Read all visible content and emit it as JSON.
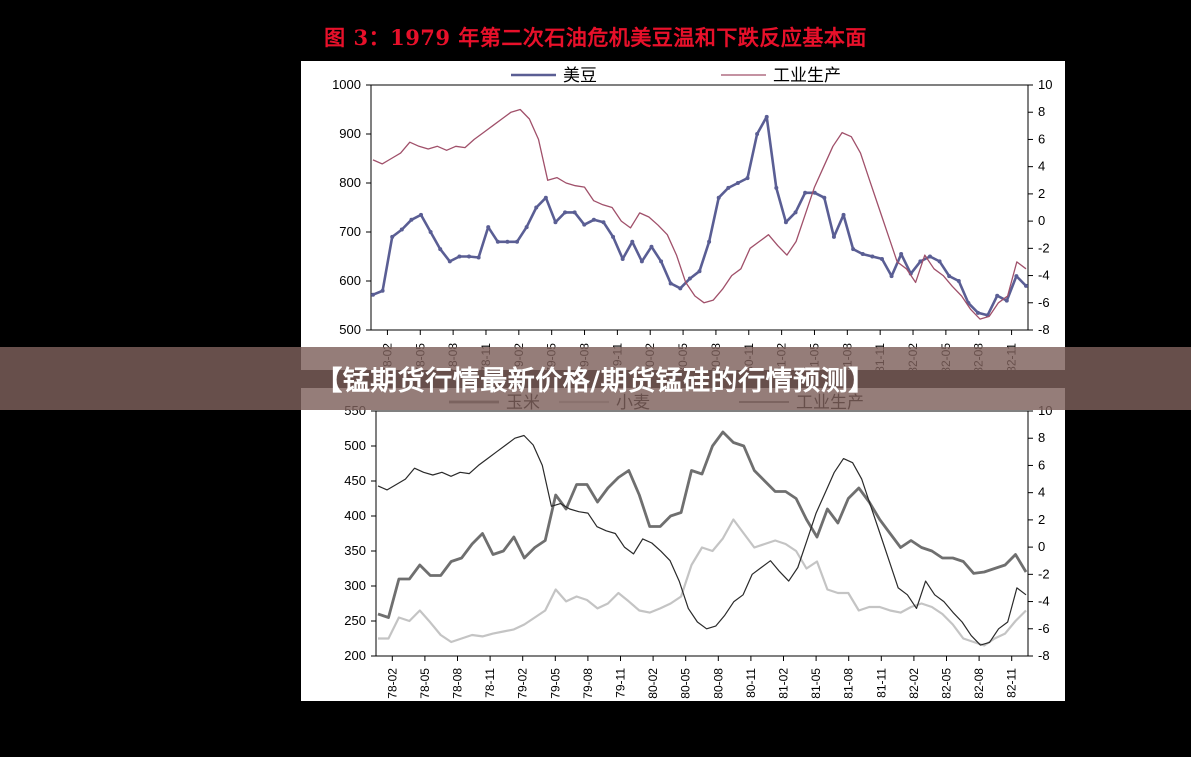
{
  "figure_title": "图 3：1979 年第二次石油危机美豆温和下跌反应基本面",
  "banner": "【锰期货行情最新价格/期货锰硅的行情预测】",
  "colors": {
    "soybean": "#5a5e94",
    "industry_top": "#a0506a",
    "corn": "#6f6f6f",
    "wheat": "#c4c4c4",
    "industry_bottom": "#2a2a2a",
    "title": "#e8102a",
    "banner_bg": "#7e605c"
  },
  "chart_data": [
    {
      "type": "line",
      "legend": [
        "美豆",
        "工业生产"
      ],
      "legend_placement": "top",
      "grid": false,
      "ylim_left": [
        500,
        1000
      ],
      "yticks_left": [
        1000,
        900,
        800,
        700,
        600,
        500
      ],
      "ylim_right": [
        -8,
        10
      ],
      "yticks_right": [
        10,
        8,
        6,
        4,
        2,
        0,
        -2,
        -4,
        -6,
        -8
      ],
      "xticks": [
        "78-02",
        "78-05",
        "78-08",
        "78-11",
        "79-02",
        "79-05",
        "79-08",
        "79-11",
        "80-02",
        "80-05",
        "80-08",
        "80-11",
        "81-02",
        "81-05",
        "81-08",
        "81-11",
        "82-02",
        "82-05",
        "82-08",
        "82-11"
      ],
      "series": [
        {
          "name": "美豆",
          "axis": "left",
          "markers": true,
          "values": [
            572,
            580,
            690,
            705,
            725,
            735,
            700,
            665,
            640,
            650,
            650,
            648,
            710,
            680,
            680,
            680,
            710,
            750,
            770,
            720,
            740,
            740,
            715,
            725,
            720,
            690,
            645,
            680,
            640,
            670,
            640,
            595,
            585,
            605,
            620,
            680,
            770,
            790,
            800,
            810,
            900,
            935,
            790,
            720,
            740,
            780,
            780,
            770,
            690,
            735,
            665,
            655,
            650,
            645,
            610,
            655,
            615,
            640,
            650,
            640,
            610,
            600,
            555,
            535,
            530,
            570,
            560,
            610,
            590
          ]
        },
        {
          "name": "工业生产",
          "axis": "right",
          "markers": false,
          "values": [
            4.5,
            4.2,
            4.6,
            5.0,
            5.8,
            5.5,
            5.3,
            5.5,
            5.2,
            5.5,
            5.4,
            6.0,
            6.5,
            7.0,
            7.5,
            8.0,
            8.2,
            7.5,
            6.0,
            3.0,
            3.2,
            2.8,
            2.6,
            2.5,
            1.5,
            1.2,
            1.0,
            0.0,
            -0.5,
            0.6,
            0.3,
            -0.3,
            -1.0,
            -2.5,
            -4.5,
            -5.5,
            -6.0,
            -5.8,
            -5.0,
            -4.0,
            -3.5,
            -2.0,
            -1.5,
            -1.0,
            -1.8,
            -2.5,
            -1.5,
            0.5,
            2.5,
            4.0,
            5.5,
            6.5,
            6.2,
            5.0,
            3.0,
            1.0,
            -1.0,
            -3.0,
            -3.5,
            -4.5,
            -2.5,
            -3.5,
            -4.0,
            -4.8,
            -5.5,
            -6.5,
            -7.2,
            -7.0,
            -6.0,
            -5.5,
            -3.0,
            -3.5
          ]
        }
      ]
    },
    {
      "type": "line",
      "legend": [
        "玉米",
        "小麦",
        "工业生产"
      ],
      "legend_placement": "top",
      "grid": false,
      "ylim_left": [
        200,
        550
      ],
      "yticks_left": [
        550,
        500,
        450,
        400,
        350,
        300,
        250,
        200
      ],
      "ylim_right": [
        -8,
        10
      ],
      "yticks_right": [
        10,
        8,
        6,
        4,
        2,
        0,
        -2,
        -4,
        -6,
        -8
      ],
      "xticks": [
        "78-02",
        "78-05",
        "78-08",
        "78-11",
        "79-02",
        "79-05",
        "79-08",
        "79-11",
        "80-02",
        "80-05",
        "80-08",
        "80-11",
        "81-02",
        "81-05",
        "81-08",
        "81-11",
        "82-02",
        "82-05",
        "82-08",
        "82-11"
      ],
      "series": [
        {
          "name": "玉米",
          "axis": "left",
          "values": [
            260,
            255,
            310,
            310,
            330,
            315,
            315,
            335,
            340,
            360,
            375,
            345,
            350,
            370,
            340,
            355,
            365,
            430,
            410,
            445,
            445,
            420,
            440,
            455,
            465,
            430,
            385,
            385,
            400,
            405,
            465,
            460,
            500,
            520,
            505,
            500,
            465,
            450,
            435,
            435,
            425,
            395,
            370,
            410,
            390,
            425,
            440,
            420,
            395,
            375,
            355,
            365,
            355,
            350,
            340,
            340,
            335,
            318,
            320,
            325,
            330,
            345,
            320
          ]
        },
        {
          "name": "小麦",
          "axis": "left",
          "values": [
            225,
            225,
            255,
            250,
            265,
            248,
            230,
            220,
            225,
            230,
            228,
            232,
            235,
            238,
            245,
            255,
            265,
            295,
            278,
            285,
            280,
            268,
            275,
            290,
            278,
            265,
            262,
            268,
            275,
            285,
            330,
            355,
            350,
            368,
            395,
            375,
            355,
            360,
            365,
            360,
            350,
            325,
            335,
            295,
            290,
            290,
            265,
            270,
            270,
            265,
            262,
            270,
            275,
            270,
            260,
            245,
            225,
            220,
            215,
            225,
            232,
            250,
            265
          ]
        },
        {
          "name": "工业生产",
          "axis": "right",
          "values": [
            4.5,
            4.2,
            4.6,
            5.0,
            5.8,
            5.5,
            5.3,
            5.5,
            5.2,
            5.5,
            5.4,
            6.0,
            6.5,
            7.0,
            7.5,
            8.0,
            8.2,
            7.5,
            6.0,
            3.0,
            3.2,
            2.8,
            2.6,
            2.5,
            1.5,
            1.2,
            1.0,
            0.0,
            -0.5,
            0.6,
            0.3,
            -0.3,
            -1.0,
            -2.5,
            -4.5,
            -5.5,
            -6.0,
            -5.8,
            -5.0,
            -4.0,
            -3.5,
            -2.0,
            -1.5,
            -1.0,
            -1.8,
            -2.5,
            -1.5,
            0.5,
            2.5,
            4.0,
            5.5,
            6.5,
            6.2,
            5.0,
            3.0,
            1.0,
            -1.0,
            -3.0,
            -3.5,
            -4.5,
            -2.5,
            -3.5,
            -4.0,
            -4.8,
            -5.5,
            -6.5,
            -7.2,
            -7.0,
            -6.0,
            -5.5,
            -3.0,
            -3.5
          ]
        }
      ]
    }
  ]
}
